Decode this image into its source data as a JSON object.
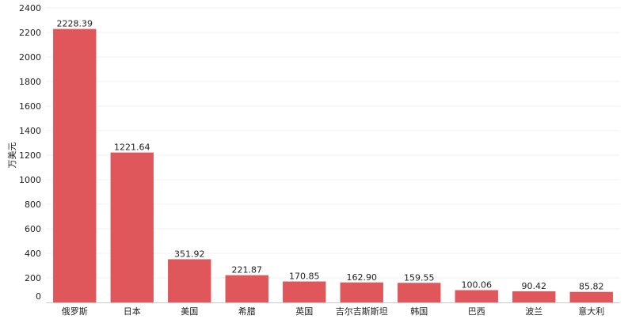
{
  "chart_data": {
    "type": "bar",
    "ylabel": "万美元",
    "ylim": [
      0,
      2400
    ],
    "yticks": [
      0,
      200,
      400,
      600,
      800,
      1000,
      1200,
      1400,
      1600,
      1800,
      2000,
      2200,
      2400
    ],
    "grid": true,
    "categories": [
      "俄罗斯",
      "日本",
      "美国",
      "希腊",
      "英国",
      "吉尔吉斯斯坦",
      "韩国",
      "巴西",
      "波兰",
      "意大利"
    ],
    "values": [
      2228.39,
      1221.64,
      351.92,
      221.87,
      170.85,
      162.9,
      159.55,
      100.06,
      90.42,
      85.82
    ],
    "data_labels": [
      "2228.39",
      "1221.64",
      "351.92",
      "221.87",
      "170.85",
      "162.90",
      "159.55",
      "100.06",
      "90.42",
      "85.82"
    ],
    "bar_color": "#e0575b"
  }
}
